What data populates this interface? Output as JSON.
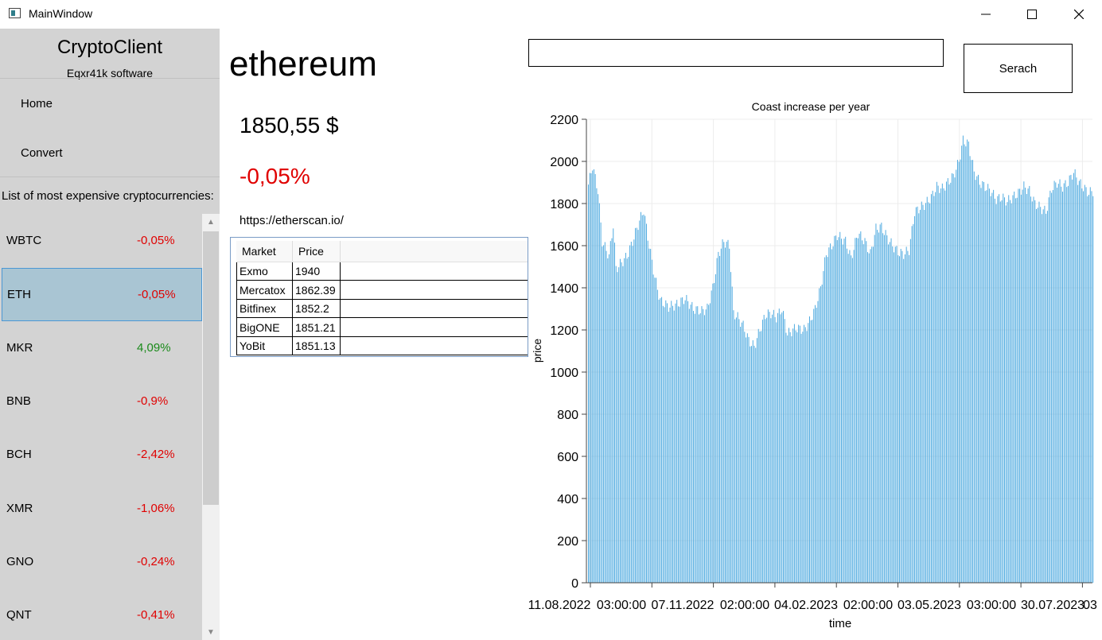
{
  "window": {
    "title": "MainWindow"
  },
  "sidebar": {
    "app_name": "CryptoClient",
    "subtitle": "Eqxr41k software",
    "nav": [
      "Home",
      "Convert"
    ],
    "list_heading": "List of most expensive cryptocurrencies:",
    "cryptos": [
      {
        "symbol": "WBTC",
        "change": "-0,05%",
        "status": "negative"
      },
      {
        "symbol": "ETH",
        "change": "-0,05%",
        "status": "negative",
        "selected": true
      },
      {
        "symbol": "MKR",
        "change": "4,09%",
        "status": "positive"
      },
      {
        "symbol": "BNB",
        "change": "-0,9%",
        "status": "negative"
      },
      {
        "symbol": "BCH",
        "change": "-2,42%",
        "status": "negative"
      },
      {
        "symbol": "XMR",
        "change": "-1,06%",
        "status": "negative"
      },
      {
        "symbol": "GNO",
        "change": "-0,24%",
        "status": "negative"
      },
      {
        "symbol": "QNT",
        "change": "-0,41%",
        "status": "negative"
      }
    ]
  },
  "coin": {
    "name": "ethereum",
    "price": "1850,55 $",
    "change": "-0,05%",
    "link": "https://etherscan.io/"
  },
  "search": {
    "value": "",
    "button_label": "Serach"
  },
  "markets": {
    "columns": [
      "Market",
      "Price"
    ],
    "rows": [
      [
        "Exmo",
        "1940"
      ],
      [
        "Mercatox",
        "1862.39"
      ],
      [
        "Bitfinex",
        "1852.2"
      ],
      [
        "BigONE",
        "1851.21"
      ],
      [
        "YoBit",
        "1851.13"
      ]
    ]
  },
  "colors": {
    "negative": "#e00000",
    "positive": "#1a8a1a",
    "bar": "#4aa8df",
    "selection": "#a9c5d3"
  },
  "chart_data": {
    "type": "bar",
    "title": "Coast increase per year",
    "xlabel": "time",
    "ylabel": "price",
    "ylim": [
      0,
      2200
    ],
    "yticks": [
      0,
      200,
      400,
      600,
      800,
      1000,
      1200,
      1400,
      1600,
      1800,
      2000,
      2200
    ],
    "xtick_labels": [
      "11.08.2022",
      "03:00:00",
      "07.11.2022",
      "02:00:00",
      "04.02.2023",
      "02:00:00",
      "03.05.2023",
      "03:00:00",
      "30.07.2023",
      "03"
    ],
    "grid": true,
    "x_start": "11.08.2022",
    "x_end": "11.08.2023",
    "keypoints": [
      [
        0,
        1890
      ],
      [
        3,
        1980
      ],
      [
        7,
        1860
      ],
      [
        10,
        1620
      ],
      [
        15,
        1550
      ],
      [
        18,
        1700
      ],
      [
        20,
        1490
      ],
      [
        24,
        1520
      ],
      [
        28,
        1550
      ],
      [
        32,
        1620
      ],
      [
        36,
        1700
      ],
      [
        40,
        1770
      ],
      [
        44,
        1600
      ],
      [
        48,
        1450
      ],
      [
        52,
        1340
      ],
      [
        58,
        1310
      ],
      [
        64,
        1320
      ],
      [
        70,
        1350
      ],
      [
        76,
        1300
      ],
      [
        82,
        1290
      ],
      [
        86,
        1300
      ],
      [
        90,
        1400
      ],
      [
        94,
        1560
      ],
      [
        98,
        1620
      ],
      [
        102,
        1600
      ],
      [
        105,
        1280
      ],
      [
        108,
        1260
      ],
      [
        112,
        1220
      ],
      [
        116,
        1150
      ],
      [
        120,
        1120
      ],
      [
        124,
        1200
      ],
      [
        128,
        1270
      ],
      [
        132,
        1280
      ],
      [
        136,
        1260
      ],
      [
        140,
        1300
      ],
      [
        144,
        1180
      ],
      [
        150,
        1210
      ],
      [
        156,
        1200
      ],
      [
        160,
        1240
      ],
      [
        164,
        1300
      ],
      [
        168,
        1400
      ],
      [
        172,
        1560
      ],
      [
        176,
        1600
      ],
      [
        180,
        1650
      ],
      [
        186,
        1620
      ],
      [
        190,
        1540
      ],
      [
        195,
        1660
      ],
      [
        200,
        1620
      ],
      [
        204,
        1560
      ],
      [
        208,
        1680
      ],
      [
        212,
        1690
      ],
      [
        216,
        1640
      ],
      [
        220,
        1600
      ],
      [
        224,
        1570
      ],
      [
        228,
        1560
      ],
      [
        232,
        1580
      ],
      [
        236,
        1760
      ],
      [
        240,
        1780
      ],
      [
        244,
        1800
      ],
      [
        248,
        1830
      ],
      [
        252,
        1880
      ],
      [
        256,
        1870
      ],
      [
        260,
        1900
      ],
      [
        264,
        1930
      ],
      [
        268,
        2000
      ],
      [
        271,
        2100
      ],
      [
        275,
        2080
      ],
      [
        279,
        1950
      ],
      [
        283,
        1900
      ],
      [
        287,
        1880
      ],
      [
        291,
        1860
      ],
      [
        295,
        1820
      ],
      [
        299,
        1830
      ],
      [
        303,
        1810
      ],
      [
        307,
        1830
      ],
      [
        311,
        1850
      ],
      [
        315,
        1880
      ],
      [
        319,
        1860
      ],
      [
        323,
        1800
      ],
      [
        327,
        1780
      ],
      [
        331,
        1760
      ],
      [
        335,
        1870
      ],
      [
        339,
        1900
      ],
      [
        343,
        1880
      ],
      [
        347,
        1900
      ],
      [
        351,
        1950
      ],
      [
        355,
        1900
      ],
      [
        359,
        1870
      ],
      [
        362,
        1850
      ],
      [
        365,
        1860
      ]
    ]
  }
}
